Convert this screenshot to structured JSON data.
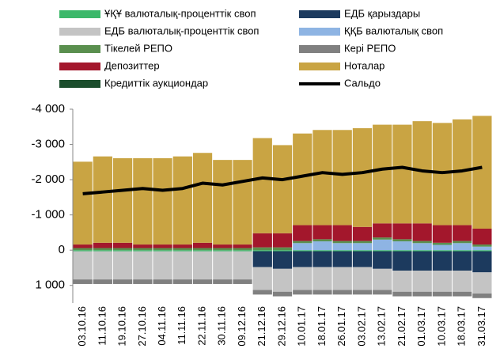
{
  "chart_data": {
    "type": "stacked_bar",
    "categories": [
      "03.10.16",
      "11.10.16",
      "19.10.16",
      "27.10.16",
      "04.11.16",
      "11.11.16",
      "22.11.16",
      "30.11.16",
      "09.12.16",
      "21.12.16",
      "29.12.16",
      "10.01.17",
      "18.01.17",
      "26.01.17",
      "03.02.17",
      "13.02.17",
      "21.02.17",
      "01.03.17",
      "10.03.17",
      "18.03.17",
      "31.03.17"
    ],
    "series": [
      {
        "name": "ҰҚҰ валюталық-проценттік своп",
        "color": "#3cb86a",
        "values": [
          30,
          30,
          30,
          30,
          30,
          30,
          30,
          30,
          30,
          30,
          30,
          30,
          30,
          30,
          30,
          30,
          30,
          30,
          30,
          30,
          30
        ]
      },
      {
        "name": "ЕДБ қарыздары",
        "color": "#1c3a5e",
        "values": [
          0,
          0,
          0,
          0,
          0,
          0,
          0,
          0,
          0,
          450,
          500,
          450,
          450,
          450,
          450,
          500,
          550,
          550,
          550,
          550,
          600
        ]
      },
      {
        "name": "ЕДБ валюталық-проценттік своп",
        "color": "#c4c4c4",
        "values": [
          800,
          800,
          800,
          800,
          800,
          800,
          800,
          800,
          800,
          650,
          650,
          650,
          650,
          650,
          650,
          600,
          600,
          600,
          600,
          600,
          600
        ]
      },
      {
        "name": "ҚҚБ валюталық своп",
        "color": "#8eb4e3",
        "values": [
          0,
          0,
          0,
          0,
          0,
          0,
          0,
          0,
          0,
          0,
          0,
          -200,
          -250,
          -200,
          -200,
          -300,
          -250,
          -200,
          -150,
          -200,
          -100
        ]
      },
      {
        "name": "Тікелей РЕПО",
        "color": "#5a8f4e",
        "values": [
          -60,
          -60,
          -60,
          -60,
          -60,
          -60,
          -60,
          -60,
          -60,
          -80,
          -80,
          -60,
          -60,
          -60,
          -60,
          -60,
          -60,
          -60,
          -60,
          -60,
          -60
        ]
      },
      {
        "name": "Кері РЕПО",
        "color": "#808080",
        "values": [
          130,
          130,
          130,
          130,
          130,
          130,
          130,
          130,
          130,
          130,
          130,
          130,
          130,
          130,
          130,
          130,
          130,
          130,
          130,
          130,
          130
        ]
      },
      {
        "name": "Депозиттер",
        "color": "#a3172c",
        "values": [
          -100,
          -150,
          -150,
          -100,
          -100,
          -100,
          -150,
          -100,
          -100,
          -400,
          -400,
          -450,
          -400,
          -450,
          -400,
          -400,
          -450,
          -500,
          -500,
          -450,
          -450
        ]
      },
      {
        "name": "Ноталар",
        "color": "#c9a443",
        "values": [
          -2350,
          -2450,
          -2400,
          -2450,
          -2450,
          -2500,
          -2550,
          -2400,
          -2400,
          -2700,
          -2500,
          -2600,
          -2700,
          -2700,
          -2800,
          -2800,
          -2800,
          -2900,
          -2900,
          -3000,
          -3200
        ]
      },
      {
        "name": "Кредиттік аукциондар",
        "color": "#1b4d2c",
        "values": [
          0,
          0,
          0,
          0,
          0,
          0,
          0,
          0,
          0,
          0,
          0,
          0,
          0,
          0,
          0,
          0,
          0,
          0,
          0,
          0,
          0
        ]
      },
      {
        "name": "Сальдо",
        "color": "#000000",
        "type": "line",
        "values": [
          -1600,
          -1650,
          -1700,
          -1750,
          -1700,
          -1750,
          -1900,
          -1850,
          -1950,
          -2050,
          -2000,
          -2100,
          -2200,
          -2150,
          -2200,
          -2300,
          -2350,
          -2250,
          -2200,
          -2250,
          -2350
        ]
      }
    ],
    "ylim": [
      -4000,
      1500
    ],
    "inverted": true,
    "yticks": [
      {
        "value": -4000,
        "label": "-4 000"
      },
      {
        "value": -3000,
        "label": "-3 000"
      },
      {
        "value": -2000,
        "label": "-2 000"
      },
      {
        "value": -1000,
        "label": "-1 000"
      },
      0,
      {
        "value": 1000,
        "label": "1 000"
      }
    ]
  }
}
